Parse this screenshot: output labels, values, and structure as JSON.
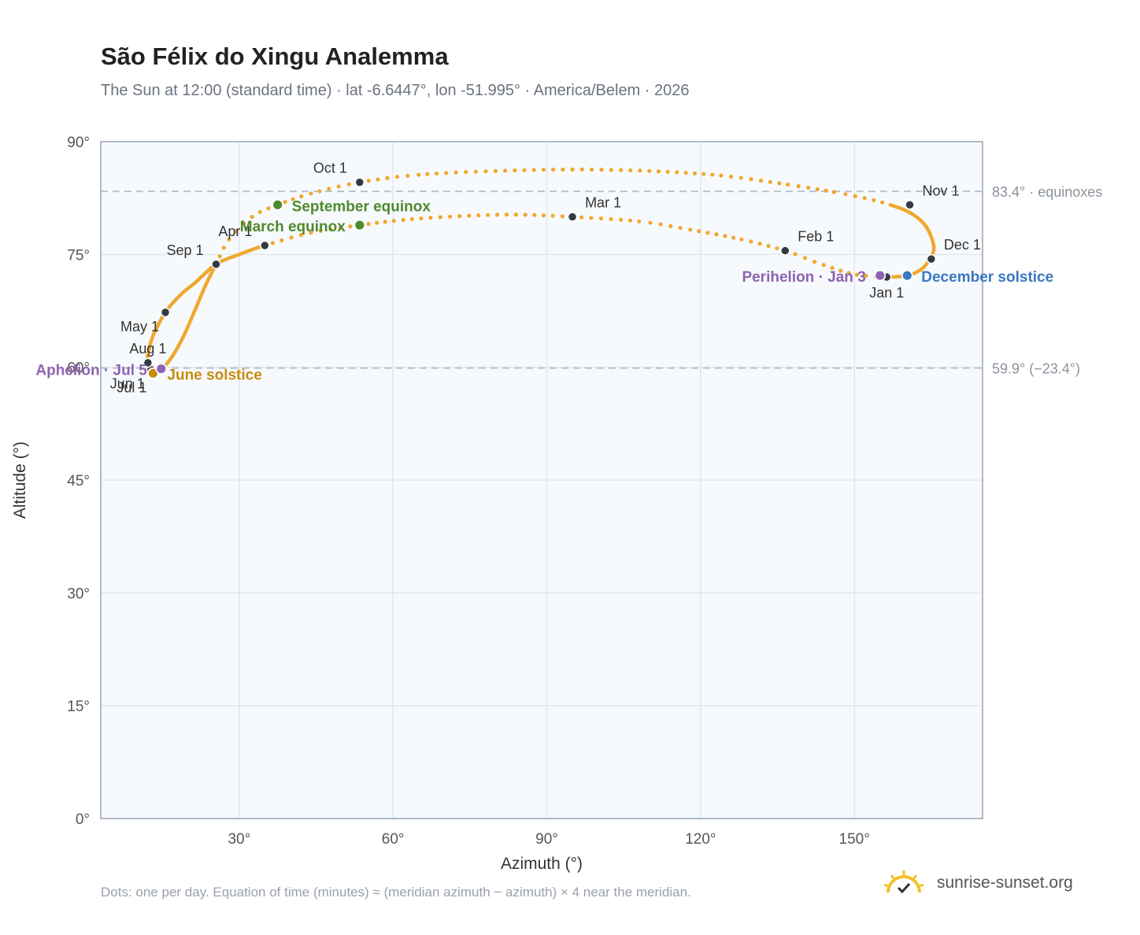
{
  "header": {
    "title": "São Félix do Xingu Analemma",
    "subtitle": "The Sun at 12:00 (standard time) · lat -6.6447°, lon -51.995° · America/Belem · 2026"
  },
  "footer": {
    "note": "Dots: one per day. Equation of time (minutes) ≈ (meridian azimuth − azimuth) × 4 near the meridian.",
    "brand": "sunrise-sunset.org",
    "brand_icon": "sun-check-icon"
  },
  "colors": {
    "curve": "#f0a830",
    "month_marker": "#333a44",
    "equinox": "#4e8a2e",
    "june_solstice": "#c98a0e",
    "december_solstice": "#3a78c0",
    "perihelion_aphelion": "#8e63b0",
    "reference_line": "#b9c3cf",
    "plot_bg": "#f7fafd",
    "grid": "#e3e7ec",
    "frame": "#98a4b3"
  },
  "chart_data": {
    "type": "scatter",
    "xlabel": "Azimuth (°)",
    "ylabel": "Altitude (°)",
    "xlim": [
      3,
      175
    ],
    "ylim": [
      0,
      90
    ],
    "x_ticks": [
      30,
      60,
      90,
      120,
      150
    ],
    "x_tick_labels": [
      "30°",
      "60°",
      "90°",
      "120°",
      "150°"
    ],
    "y_ticks": [
      0,
      15,
      30,
      45,
      60,
      75,
      90
    ],
    "y_tick_labels": [
      "0°",
      "15°",
      "30°",
      "45°",
      "60°",
      "75°",
      "90°"
    ],
    "grid": true,
    "reference_lines": [
      {
        "y": 83.4,
        "label": "83.4° · equinoxes"
      },
      {
        "y": 59.9,
        "label": "59.9° (−23.4°)"
      }
    ],
    "path_points": [
      [
        157.0,
        72.0
      ],
      [
        150.5,
        72.3
      ],
      [
        144.0,
        73.6
      ],
      [
        136.5,
        75.5
      ],
      [
        128.0,
        77.0
      ],
      [
        118.0,
        78.3
      ],
      [
        108.0,
        79.4
      ],
      [
        95.0,
        80.0
      ],
      [
        84.0,
        80.3
      ],
      [
        73.0,
        80.1
      ],
      [
        62.0,
        79.6
      ],
      [
        53.5,
        78.9
      ],
      [
        44.0,
        77.9
      ],
      [
        35.0,
        76.2
      ],
      [
        30.0,
        75.0
      ],
      [
        25.5,
        73.7
      ],
      [
        21.5,
        71.3
      ],
      [
        18.5,
        69.6
      ],
      [
        15.6,
        67.3
      ],
      [
        13.2,
        64.2
      ],
      [
        12.2,
        61.7
      ],
      [
        12.1,
        60.4
      ],
      [
        12.8,
        59.7
      ],
      [
        13.2,
        59.2
      ],
      [
        14.0,
        59.3
      ],
      [
        15.0,
        59.8
      ],
      [
        17.0,
        61.5
      ],
      [
        19.2,
        64.2
      ],
      [
        21.5,
        67.8
      ],
      [
        23.5,
        71.0
      ],
      [
        25.5,
        73.7
      ],
      [
        28.0,
        77.0
      ],
      [
        32.5,
        80.0
      ],
      [
        37.5,
        81.6
      ],
      [
        44.0,
        83.1
      ],
      [
        53.5,
        84.6
      ],
      [
        65.0,
        85.6
      ],
      [
        80.0,
        86.1
      ],
      [
        95.0,
        86.3
      ],
      [
        110.0,
        86.1
      ],
      [
        124.0,
        85.5
      ],
      [
        137.0,
        84.3
      ],
      [
        146.0,
        83.3
      ],
      [
        152.0,
        82.5
      ],
      [
        157.0,
        81.6
      ],
      [
        161.0,
        80.5
      ],
      [
        164.0,
        78.7
      ],
      [
        165.5,
        76.0
      ],
      [
        164.6,
        74.3
      ],
      [
        163.0,
        73.0
      ],
      [
        160.3,
        72.2
      ],
      [
        157.0,
        72.0
      ]
    ],
    "solid_segments": [
      [
        13,
        30
      ],
      [
        44,
        51
      ]
    ],
    "month_markers": [
      {
        "label": "Jan 1",
        "x": 156.3,
        "y": 72.0,
        "label_pos": "below"
      },
      {
        "label": "Feb 1",
        "x": 136.5,
        "y": 75.5,
        "label_pos": "above-right"
      },
      {
        "label": "Mar 1",
        "x": 95.0,
        "y": 80.0,
        "label_pos": "above-right"
      },
      {
        "label": "Apr 1",
        "x": 35.0,
        "y": 76.2,
        "label_pos": "above-left"
      },
      {
        "label": "May 1",
        "x": 15.6,
        "y": 67.3,
        "label_pos": "below-left"
      },
      {
        "label": "Jun 1",
        "x": 12.8,
        "y": 59.7,
        "label_pos": "below-left"
      },
      {
        "label": "Jul 1",
        "x": 13.2,
        "y": 59.2,
        "label_pos": "below-left"
      },
      {
        "label": "Aug 1",
        "x": 12.2,
        "y": 60.6,
        "label_pos": "above"
      },
      {
        "label": "Sep 1",
        "x": 25.5,
        "y": 73.7,
        "label_pos": "above-left"
      },
      {
        "label": "Oct 1",
        "x": 53.5,
        "y": 84.6,
        "label_pos": "above-left"
      },
      {
        "label": "Nov 1",
        "x": 160.8,
        "y": 81.6,
        "label_pos": "above-right"
      },
      {
        "label": "Dec 1",
        "x": 165.0,
        "y": 74.4,
        "label_pos": "above-right"
      }
    ],
    "events": [
      {
        "label": "March equinox",
        "x": 53.5,
        "y": 78.9,
        "kind": "equinox",
        "label_pos": "left"
      },
      {
        "label": "September equinox",
        "x": 37.5,
        "y": 81.6,
        "kind": "equinox",
        "label_pos": "right"
      },
      {
        "label": "June solstice",
        "x": 13.2,
        "y": 59.2,
        "kind": "june_solstice",
        "label_pos": "right"
      },
      {
        "label": "December solstice",
        "x": 160.3,
        "y": 72.2,
        "kind": "december_solstice",
        "label_pos": "right"
      },
      {
        "label": "Perihelion · Jan 3",
        "x": 155.0,
        "y": 72.2,
        "kind": "perihelion_aphelion",
        "label_pos": "left"
      },
      {
        "label": "Aphelion · Jul 5",
        "x": 14.8,
        "y": 59.8,
        "kind": "perihelion_aphelion",
        "label_pos": "left"
      }
    ]
  }
}
